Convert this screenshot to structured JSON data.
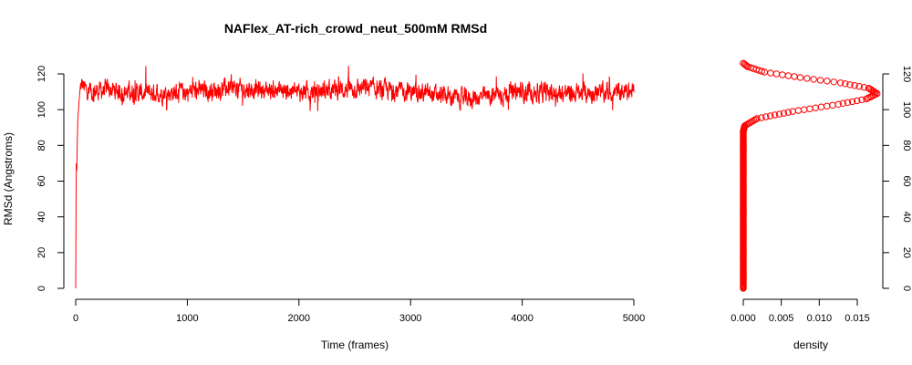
{
  "colors": {
    "series": "#ff0000",
    "axis": "#000000",
    "background": "#ffffff"
  },
  "chart_data": [
    {
      "type": "line",
      "title": "NAFlex_AT-rich_crowd_neut_500mM RMSd",
      "xlabel": "Time (frames)",
      "ylabel": "RMSd (Angstroms)",
      "xlim": [
        0,
        5000
      ],
      "ylim": [
        0,
        120
      ],
      "xticks": [
        "0",
        "1000",
        "2000",
        "3000",
        "4000",
        "5000"
      ],
      "yticks": [
        "0",
        "20",
        "40",
        "60",
        "80",
        "100",
        "120"
      ],
      "series": [
        {
          "color": "#ff0000",
          "summary": {
            "start_value": 0,
            "plateau_mean": 110,
            "plateau_min": 91,
            "plateau_max": 125,
            "plateau_reached_frame": 40
          },
          "x": [
            0,
            5,
            10,
            15,
            20,
            30,
            40,
            60,
            100,
            300,
            600,
            1000,
            1400,
            1750,
            2000,
            2600,
            3000,
            3500,
            4000,
            4500,
            5000
          ],
          "y": [
            0,
            70,
            66,
            84,
            95,
            105,
            112,
            114,
            110,
            111,
            109,
            110,
            112,
            111,
            110,
            112,
            110,
            106,
            110,
            109,
            110
          ]
        }
      ],
      "grid": false
    },
    {
      "type": "line",
      "marker": "circle",
      "title": "",
      "xlabel": "density",
      "ylabel": "",
      "xlim": [
        0,
        0.017
      ],
      "ylim": [
        0,
        120
      ],
      "xticks": [
        "0.000",
        "0.005",
        "0.010",
        "0.015"
      ],
      "yticks": [
        "0",
        "20",
        "40",
        "60",
        "80",
        "100",
        "120"
      ],
      "y_axis_side": "right",
      "series": [
        {
          "color": "#ff0000",
          "x": [
            0,
            0,
            0.0002,
            0.0018,
            0.0065,
            0.0125,
            0.0162,
            0.0176,
            0.0165,
            0.0128,
            0.0075,
            0.0028,
            0.0006,
            0
          ],
          "y": [
            0,
            88,
            91,
            95,
            99,
            103,
            106,
            109,
            112,
            115,
            118,
            121,
            124,
            126
          ]
        }
      ],
      "grid": false
    }
  ]
}
